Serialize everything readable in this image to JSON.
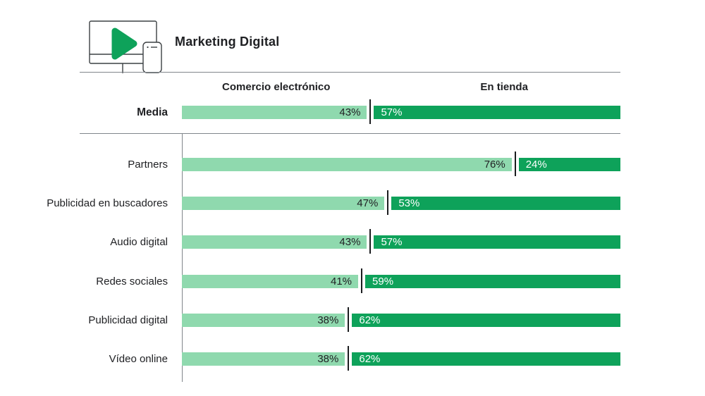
{
  "header": {
    "title": "Marketing Digital"
  },
  "colors": {
    "light_green": "#8FD9AE",
    "dark_green": "#0EA25A",
    "text": "#202124",
    "line_gray": "#80868B",
    "tick_black": "#1B1D1F",
    "icon_outline": "#3C4043"
  },
  "chart_data": {
    "type": "bar",
    "orientation": "horizontal",
    "stacked": true,
    "grid": false,
    "value_suffix": "%",
    "xlim": [
      0,
      100
    ],
    "series": [
      "Comercio electrónico",
      "En tienda"
    ],
    "summary_row": {
      "label": "Media",
      "values": [
        43,
        57
      ]
    },
    "rows": [
      {
        "label": "Partners",
        "values": [
          76,
          24
        ]
      },
      {
        "label": "Publicidad en buscadores",
        "values": [
          47,
          53
        ]
      },
      {
        "label": "Audio digital",
        "values": [
          43,
          57
        ]
      },
      {
        "label": "Redes sociales",
        "values": [
          41,
          59
        ]
      },
      {
        "label": "Publicidad digital",
        "values": [
          38,
          62
        ]
      },
      {
        "label": "Vídeo online",
        "values": [
          38,
          62
        ]
      }
    ]
  }
}
